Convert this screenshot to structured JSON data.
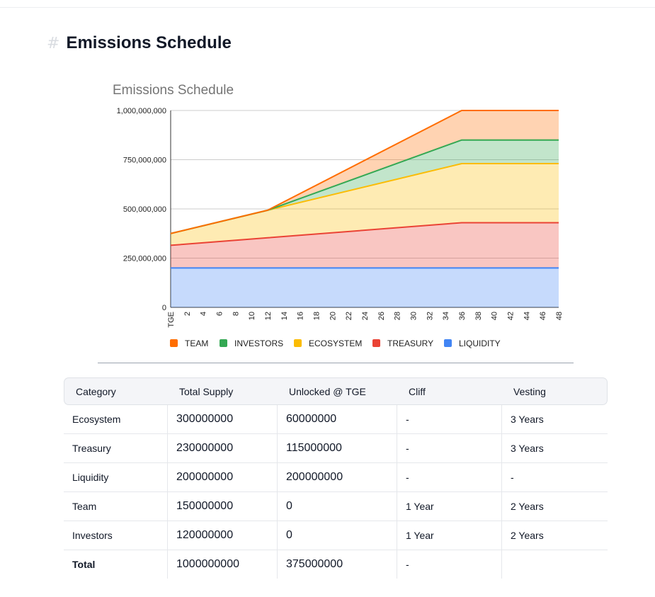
{
  "page": {
    "heading_mark": "#",
    "title": "Emissions Schedule"
  },
  "chart_data": {
    "type": "area",
    "stacked": true,
    "title": "Emissions Schedule",
    "xlabel": "",
    "ylabel": "",
    "ylim": [
      0,
      1000000000
    ],
    "yticks": [
      0,
      250000000,
      500000000,
      750000000,
      1000000000
    ],
    "ytick_labels": [
      "0",
      "250,000,000",
      "500,000,000",
      "750,000,000",
      "1,000,000,000"
    ],
    "xlim": [
      0,
      48
    ],
    "xtick_labels": [
      "TGE",
      "2",
      "4",
      "6",
      "8",
      "10",
      "12",
      "14",
      "16",
      "18",
      "20",
      "22",
      "24",
      "26",
      "28",
      "30",
      "32",
      "34",
      "36",
      "38",
      "40",
      "42",
      "44",
      "46",
      "48"
    ],
    "grid": true,
    "legend_position": "bottom",
    "series": [
      {
        "name": "LIQUIDITY",
        "color": "#4285f4",
        "points": [
          [
            0,
            200000000
          ],
          [
            48,
            200000000
          ]
        ]
      },
      {
        "name": "TREASURY",
        "color": "#ea4335",
        "points": [
          [
            0,
            115000000
          ],
          [
            36,
            230000000
          ],
          [
            48,
            230000000
          ]
        ]
      },
      {
        "name": "ECOSYSTEM",
        "color": "#fbbc04",
        "points": [
          [
            0,
            60000000
          ],
          [
            36,
            300000000
          ],
          [
            48,
            300000000
          ]
        ]
      },
      {
        "name": "INVESTORS",
        "color": "#34a853",
        "points": [
          [
            0,
            0
          ],
          [
            12,
            0
          ],
          [
            36,
            120000000
          ],
          [
            48,
            120000000
          ]
        ]
      },
      {
        "name": "TEAM",
        "color": "#ff6d01",
        "points": [
          [
            0,
            0
          ],
          [
            12,
            0
          ],
          [
            36,
            150000000
          ],
          [
            48,
            150000000
          ]
        ]
      }
    ],
    "legend_order": [
      "TEAM",
      "INVESTORS",
      "ECOSYSTEM",
      "TREASURY",
      "LIQUIDITY"
    ]
  },
  "table": {
    "headers": [
      "Category",
      "Total Supply",
      "Unlocked @ TGE",
      "Cliff",
      "Vesting"
    ],
    "rows": [
      [
        "Ecosystem",
        "300000000",
        "60000000",
        "-",
        "3 Years"
      ],
      [
        "Treasury",
        "230000000",
        "115000000",
        "-",
        "3 Years"
      ],
      [
        "Liquidity",
        "200000000",
        "200000000",
        "-",
        "-"
      ],
      [
        "Team",
        "150000000",
        "0",
        "1 Year",
        "2 Years"
      ],
      [
        "Investors",
        "120000000",
        "0",
        "1 Year",
        "2 Years"
      ],
      [
        "Total",
        "1000000000",
        "375000000",
        "-",
        ""
      ]
    ]
  }
}
